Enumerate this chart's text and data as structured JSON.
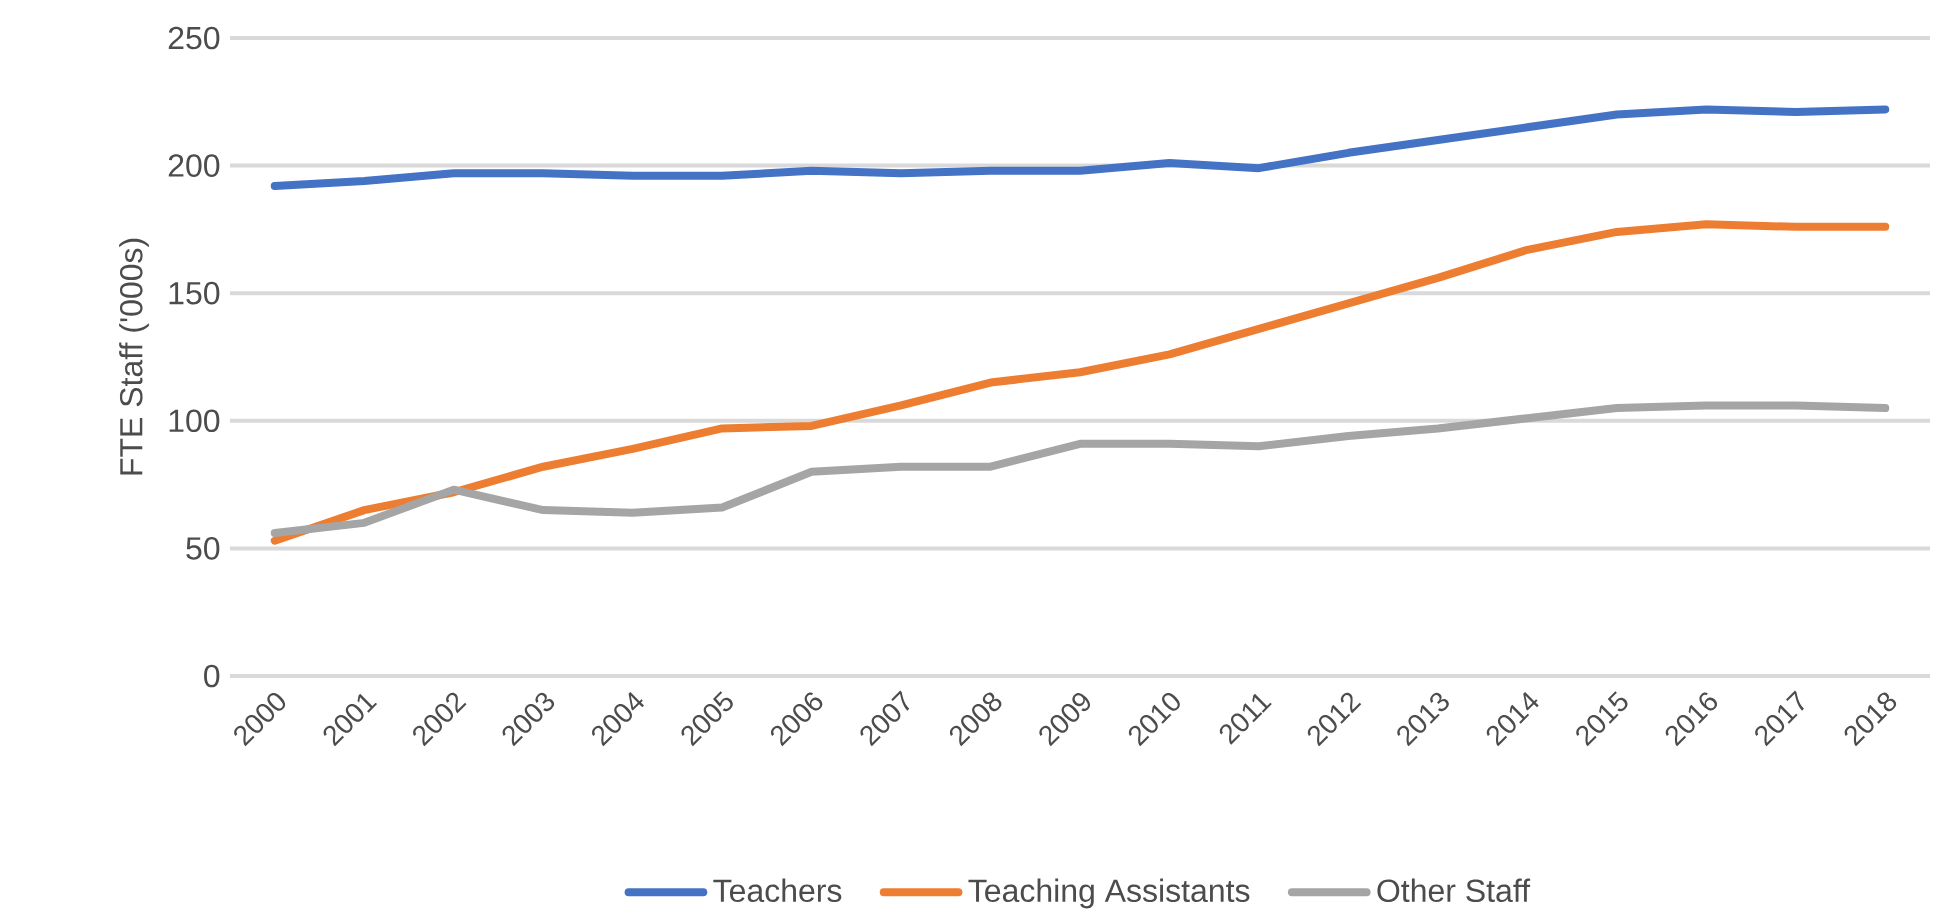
{
  "chart_data": {
    "type": "line",
    "ylabel": "FTE Staff ('000s)",
    "categories": [
      "2000",
      "2001",
      "2002",
      "2003",
      "2004",
      "2005",
      "2006",
      "2007",
      "2008",
      "2009",
      "2010",
      "2011",
      "2012",
      "2013",
      "2014",
      "2015",
      "2016",
      "2017",
      "2018"
    ],
    "series": [
      {
        "name": "Teachers",
        "color": "#4472c4",
        "values": [
          192,
          194,
          197,
          197,
          196,
          196,
          198,
          197,
          198,
          198,
          201,
          199,
          205,
          210,
          215,
          220,
          222,
          221,
          222
        ]
      },
      {
        "name": "Teaching Assistants",
        "color": "#ed7d31",
        "values": [
          53,
          65,
          72,
          82,
          89,
          97,
          98,
          106,
          115,
          119,
          126,
          136,
          146,
          156,
          167,
          174,
          177,
          176,
          176
        ]
      },
      {
        "name": "Other Staff",
        "color": "#a5a5a5",
        "values": [
          56,
          60,
          73,
          65,
          64,
          66,
          80,
          82,
          82,
          91,
          91,
          90,
          94,
          97,
          101,
          105,
          106,
          106,
          105
        ]
      }
    ],
    "ylim": [
      0,
      250
    ],
    "yticks": [
      0,
      50,
      100,
      150,
      200,
      250
    ],
    "grid": "y",
    "legend": "bottom",
    "marker": "none",
    "line_style": "solid"
  }
}
